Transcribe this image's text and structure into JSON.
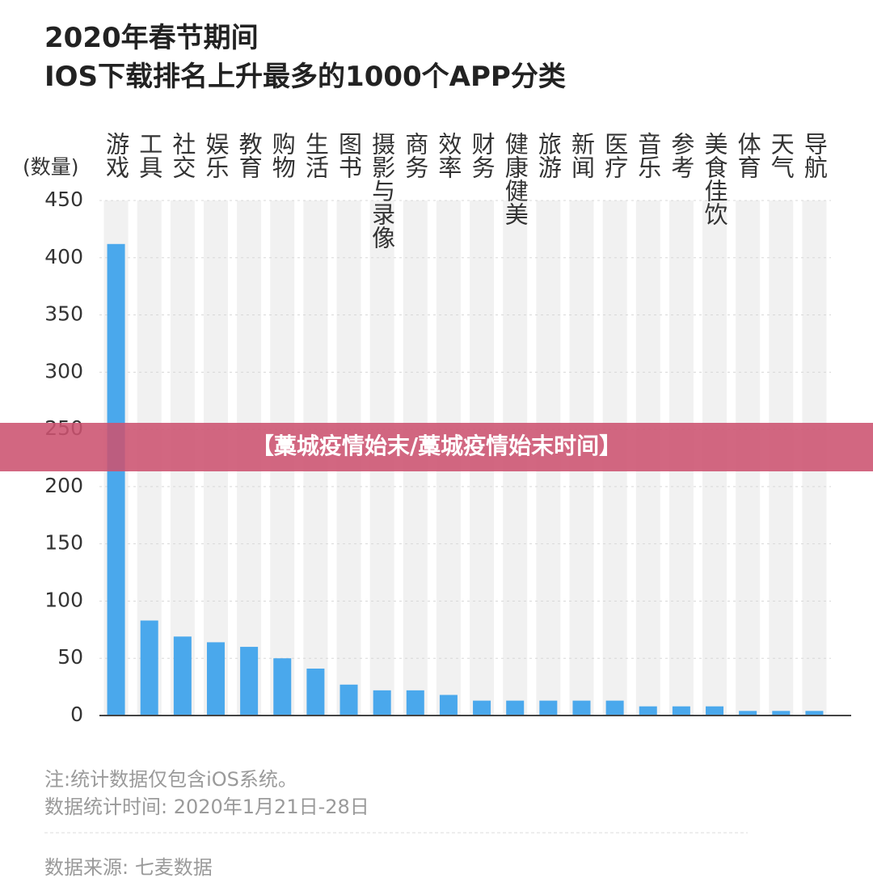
{
  "chart_data": {
    "type": "bar",
    "title": "2020年春节期间",
    "subtitle": "IOS下载排名上升最多的1000个APP分类",
    "y_label": "(数量)",
    "categories": [
      "游戏",
      "工具",
      "社交",
      "娱乐",
      "教育",
      "购物",
      "生活",
      "图书",
      "摄影与录像",
      "商务",
      "效率",
      "财务",
      "健康健美",
      "旅游",
      "新闻",
      "医疗",
      "音乐",
      "参考",
      "美食佳饮",
      "体育",
      "天气",
      "导航"
    ],
    "values": [
      412,
      83,
      69,
      64,
      60,
      50,
      41,
      27,
      22,
      22,
      18,
      13,
      13,
      13,
      13,
      13,
      8,
      8,
      8,
      4,
      4,
      4
    ],
    "color": "#4aa8ec",
    "ylim": [
      0,
      450
    ],
    "yticks": [
      0,
      50,
      100,
      150,
      200,
      250,
      300,
      350,
      400,
      450
    ],
    "grid": true,
    "notes": [
      "注:统计数据仅包含iOS系统。",
      "数据统计时间: 2020年1月21日-28日",
      "数据来源: 七麦数据"
    ]
  },
  "banner": "【藁城疫情始末/藁城疫情始末时间】"
}
